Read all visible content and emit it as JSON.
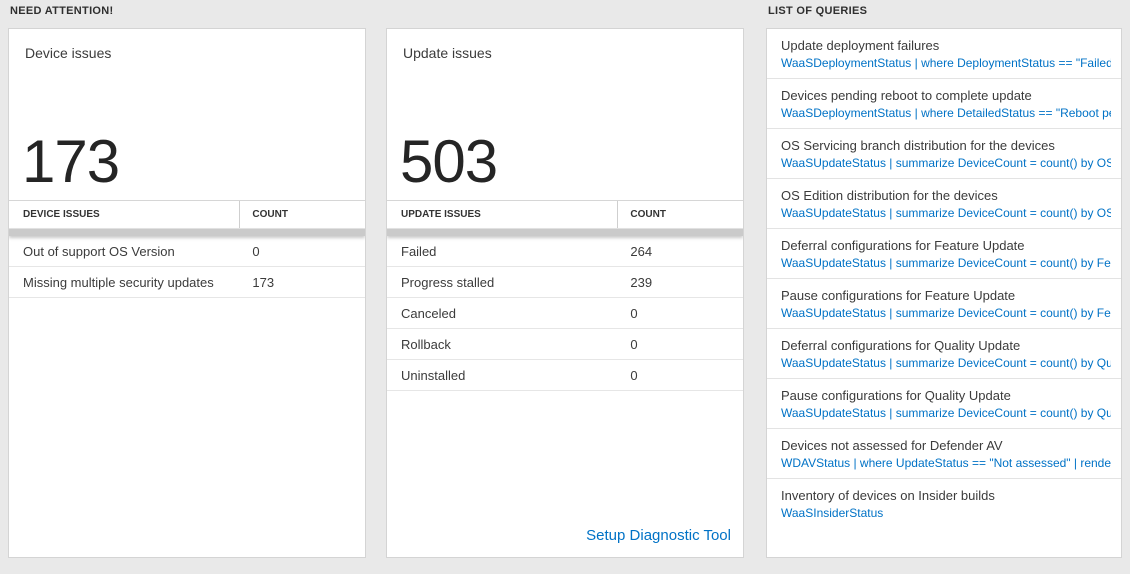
{
  "sections": {
    "need_attention_label": "NEED ATTENTION!",
    "queries_label": "LIST OF QUERIES"
  },
  "device_card": {
    "title": "Device issues",
    "count": "173",
    "headers": {
      "name": "DEVICE ISSUES",
      "count": "COUNT"
    },
    "rows": [
      {
        "label": "Out of support OS Version",
        "count": "0"
      },
      {
        "label": "Missing multiple security updates",
        "count": "173"
      }
    ]
  },
  "update_card": {
    "title": "Update issues",
    "count": "503",
    "headers": {
      "name": "UPDATE ISSUES",
      "count": "COUNT"
    },
    "rows": [
      {
        "label": "Failed",
        "count": "264"
      },
      {
        "label": "Progress stalled",
        "count": "239"
      },
      {
        "label": "Canceled",
        "count": "0"
      },
      {
        "label": "Rollback",
        "count": "0"
      },
      {
        "label": "Uninstalled",
        "count": "0"
      }
    ],
    "footer_link": "Setup Diagnostic Tool"
  },
  "queries_card": {
    "items": [
      {
        "title": "Update deployment failures",
        "query": "WaaSDeploymentStatus | where DeploymentStatus == \"Failed\" |..."
      },
      {
        "title": "Devices pending reboot to complete update",
        "query": "WaaSDeploymentStatus | where DetailedStatus == \"Reboot pend..."
      },
      {
        "title": "OS Servicing branch distribution for the devices",
        "query": "WaaSUpdateStatus | summarize DeviceCount = count() by OSSer..."
      },
      {
        "title": "OS Edition distribution for the devices",
        "query": "WaaSUpdateStatus | summarize DeviceCount = count() by OSEdit..."
      },
      {
        "title": "Deferral configurations for Feature Update",
        "query": "WaaSUpdateStatus | summarize DeviceCount = count() by Featur..."
      },
      {
        "title": "Pause configurations for Feature Update",
        "query": "WaaSUpdateStatus | summarize DeviceCount = count() by Featur..."
      },
      {
        "title": "Deferral configurations for Quality Update",
        "query": "WaaSUpdateStatus | summarize DeviceCount = count() by Qualit..."
      },
      {
        "title": "Pause configurations for Quality Update",
        "query": "WaaSUpdateStatus | summarize DeviceCount = count() by Qualit..."
      },
      {
        "title": "Devices not assessed for Defender AV",
        "query": "WDAVStatus | where UpdateStatus == \"Not assessed\" | render ta..."
      },
      {
        "title": "Inventory of devices on Insider builds",
        "query": "WaaSInsiderStatus"
      }
    ]
  },
  "colors": {
    "accent_blue": "#0072c6",
    "background": "#e9e9e9"
  }
}
